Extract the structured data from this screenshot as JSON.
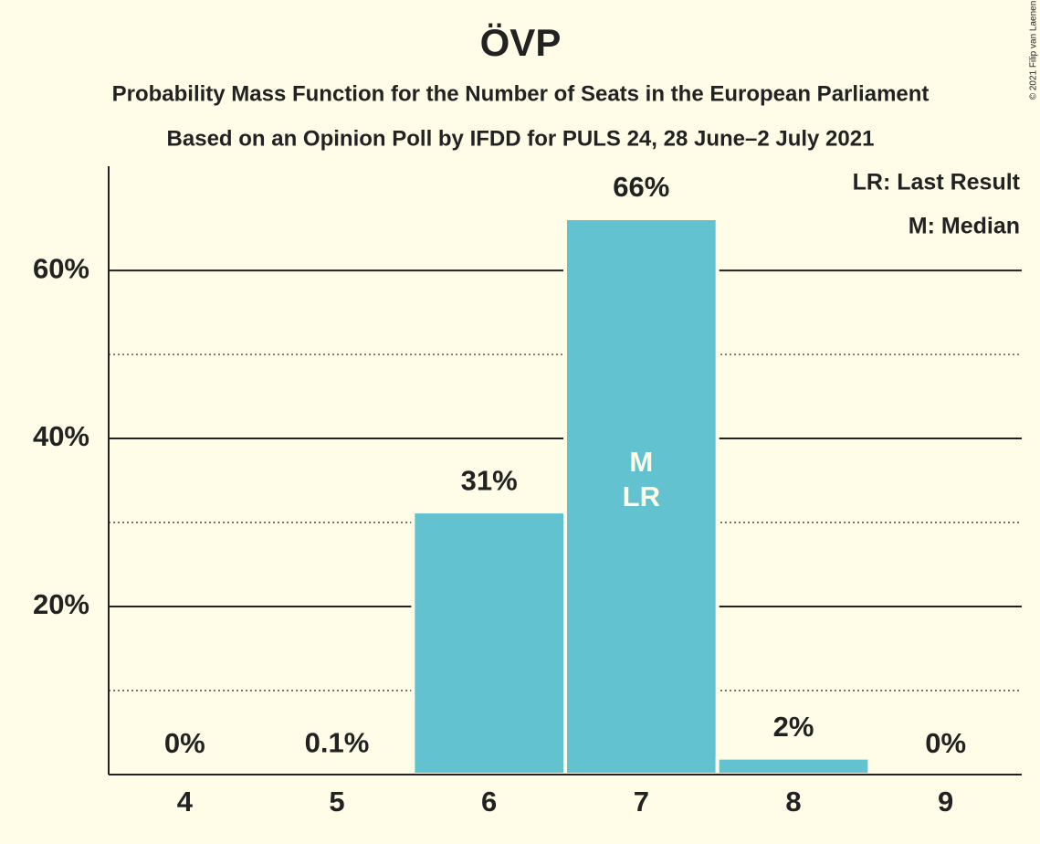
{
  "chart_data": {
    "type": "bar",
    "title": "ÖVP",
    "subtitle": "Probability Mass Function for the Number of Seats in the European Parliament",
    "subtitle2": "Based on an Opinion Poll by IFDD for PULS 24, 28 June–2 July 2021",
    "categories": [
      "4",
      "5",
      "6",
      "7",
      "8",
      "9"
    ],
    "values": [
      0,
      0.1,
      31.3,
      66.2,
      2,
      0
    ],
    "value_labels": [
      "0%",
      "0.1%",
      "31%",
      "66%",
      "2%",
      "0%"
    ],
    "color": "#62c2d0",
    "ylim": [
      0,
      72.4
    ],
    "yticks": [
      {
        "value": 20,
        "label": "20%"
      },
      {
        "value": 40,
        "label": "40%"
      },
      {
        "value": 60,
        "label": "60%"
      }
    ],
    "minor_yticks": [
      10,
      30,
      50
    ],
    "grid": true,
    "annotations": [
      {
        "text": "M",
        "category": "7"
      },
      {
        "text": "LR",
        "category": "7"
      }
    ],
    "legend_notes": [
      "LR: Last Result",
      "M: Median"
    ],
    "copyright": "© 2021 Filip van Laenen"
  }
}
